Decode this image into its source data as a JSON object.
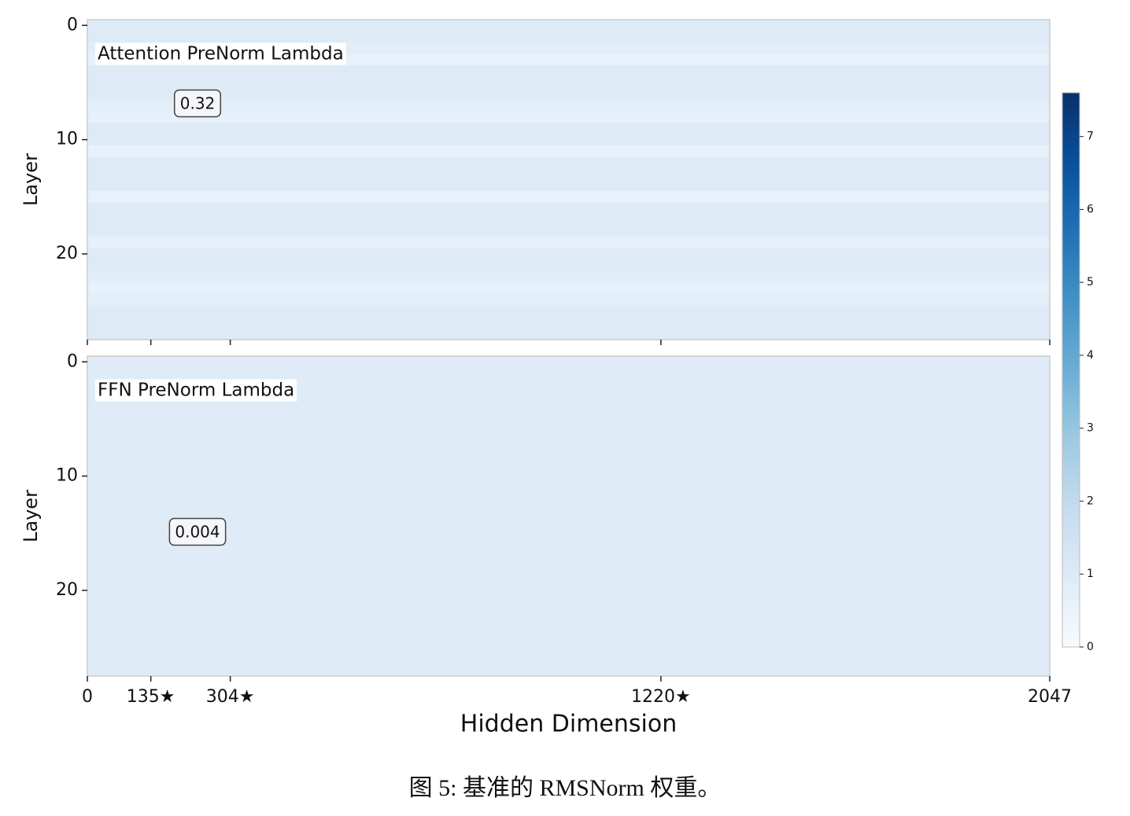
{
  "chart_data": [
    {
      "type": "heatmap",
      "title": "Attention PreNorm Lambda",
      "annotation": "0.32",
      "ylabel": "Layer",
      "y": [
        0,
        1,
        2,
        3,
        4,
        5,
        6,
        7,
        8,
        9,
        10,
        11,
        12,
        13,
        14,
        15,
        16,
        17,
        18,
        19,
        20,
        21,
        22,
        23,
        24,
        25,
        26,
        27
      ],
      "values": [
        0.95,
        0.95,
        0.85,
        0.6,
        0.95,
        0.95,
        0.95,
        0.8,
        0.65,
        0.95,
        0.95,
        0.62,
        0.95,
        0.95,
        0.95,
        0.62,
        0.95,
        0.95,
        0.95,
        0.65,
        0.95,
        0.95,
        0.85,
        0.62,
        0.8,
        0.95,
        0.95,
        0.95
      ],
      "ylim": [
        27.5,
        -0.5
      ],
      "yticks": [
        0,
        10,
        20
      ],
      "xlim": [
        0,
        2047
      ],
      "xticks": [
        0,
        135,
        304,
        1220,
        2047
      ]
    },
    {
      "type": "heatmap",
      "title": "FFN PreNorm Lambda",
      "annotation": "0.004",
      "ylabel": "Layer",
      "xlabel": "Hidden Dimension",
      "y": [
        0,
        1,
        2,
        3,
        4,
        5,
        6,
        7,
        8,
        9,
        10,
        11,
        12,
        13,
        14,
        15,
        16,
        17,
        18,
        19,
        20,
        21,
        22,
        23,
        24,
        25,
        26,
        27
      ],
      "values": [
        0.9,
        0.9,
        0.9,
        0.9,
        0.9,
        0.9,
        0.9,
        0.9,
        0.9,
        0.9,
        0.9,
        0.9,
        0.9,
        0.9,
        0.9,
        0.9,
        0.9,
        0.9,
        0.9,
        0.9,
        0.9,
        0.9,
        0.9,
        0.9,
        0.9,
        0.9,
        0.9,
        0.9
      ],
      "ylim": [
        27.5,
        -0.5
      ],
      "yticks": [
        0,
        10,
        20
      ],
      "xlim": [
        0,
        2047
      ],
      "xticks": [
        0,
        {
          "value": 135,
          "label": "135★"
        },
        {
          "value": 304,
          "label": "304★"
        },
        {
          "value": 1220,
          "label": "1220★"
        },
        2047
      ]
    }
  ],
  "colorbar": {
    "clim": [
      0,
      7.6
    ],
    "ticks": [
      0,
      1,
      2,
      3,
      4,
      5,
      6,
      7
    ],
    "colormap": [
      "#f7fbff",
      "#deebf7",
      "#c6dbef",
      "#9ecae1",
      "#6baed6",
      "#4292c6",
      "#2171b5",
      "#08519c",
      "#08306b"
    ]
  },
  "caption": "图 5: 基准的 RMSNorm 权重。"
}
